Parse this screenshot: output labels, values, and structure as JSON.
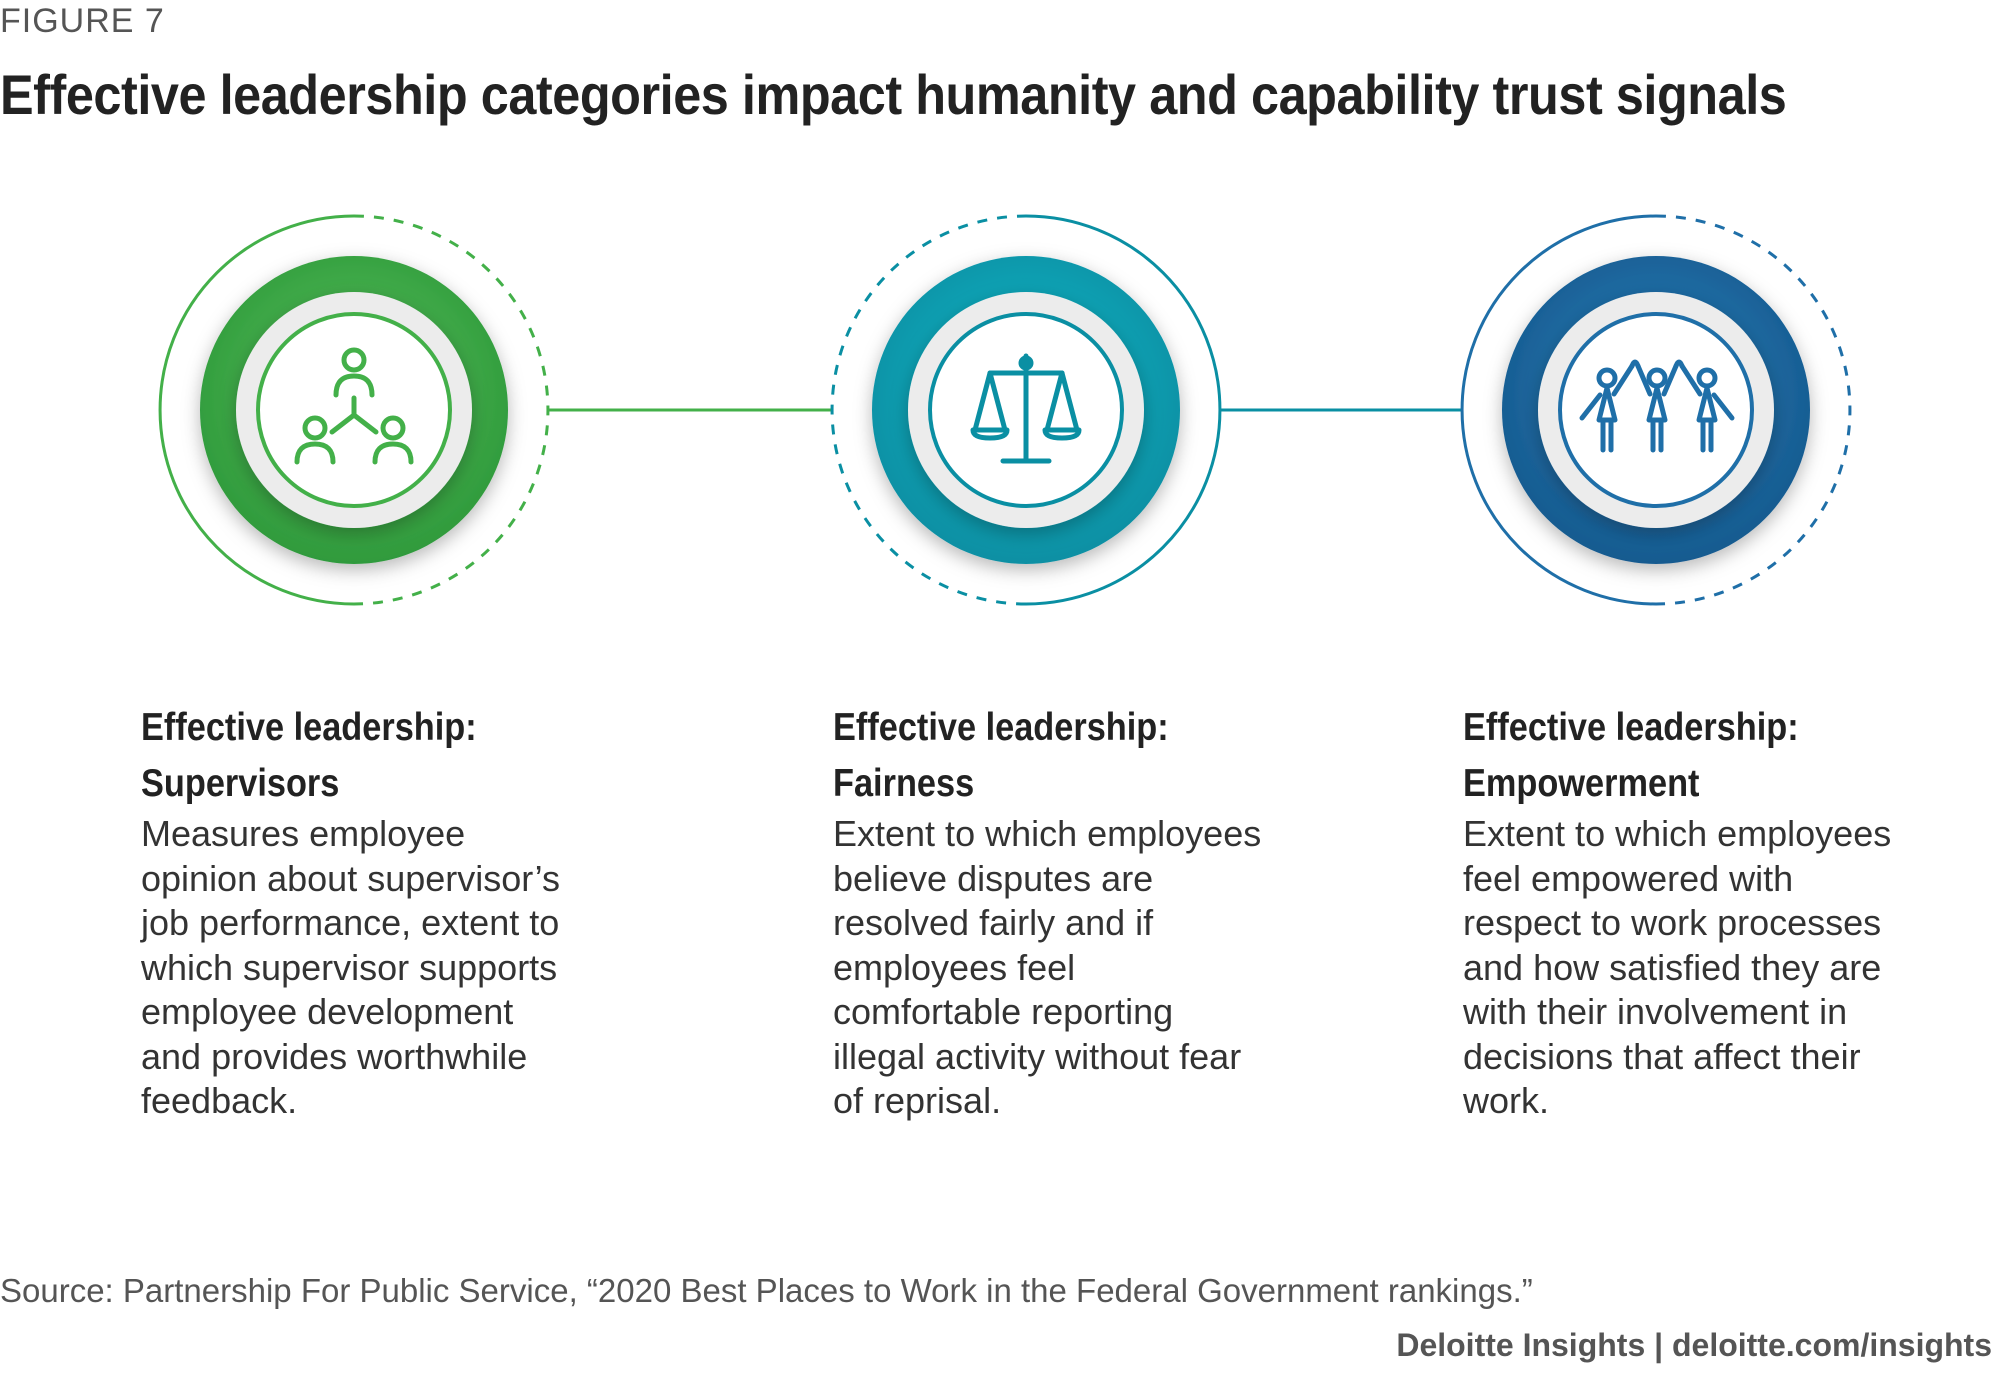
{
  "figure_label": "FIGURE 7",
  "title": "Effective leadership categories impact humanity and capability trust signals",
  "colors": {
    "green": "#43b049",
    "teal": "#00a3b4",
    "blue": "#1f6fa8",
    "green_dark": "#2f9a3c",
    "teal_dark": "#0a8fa3",
    "blue_dark": "#155a8f"
  },
  "items": [
    {
      "icon": "people-network-icon",
      "heading_line1": "Effective leadership:",
      "heading_line2": "Supervisors",
      "description": "Measures employee opinion about supervisor’s job performance, extent to which supervisor supports employee development and provides worthwhile feedback."
    },
    {
      "icon": "scales-of-justice-icon",
      "heading_line1": "Effective leadership:",
      "heading_line2": "Fairness",
      "description": "Extent to which employees believe disputes are resolved fairly and if employees feel comfortable reporting illegal activity without fear of reprisal."
    },
    {
      "icon": "people-raised-hands-icon",
      "heading_line1": "Effective leadership:",
      "heading_line2": "Empowerment",
      "description": "Extent to which employees feel empowered with respect to work processes and how satisfied they are with their involvement in decisions that affect their work."
    }
  ],
  "source": "Source: Partnership For Public Service, “2020 Best Places to Work in the Federal Government rankings.”",
  "brand": "Deloitte Insights | deloitte.com/insights"
}
